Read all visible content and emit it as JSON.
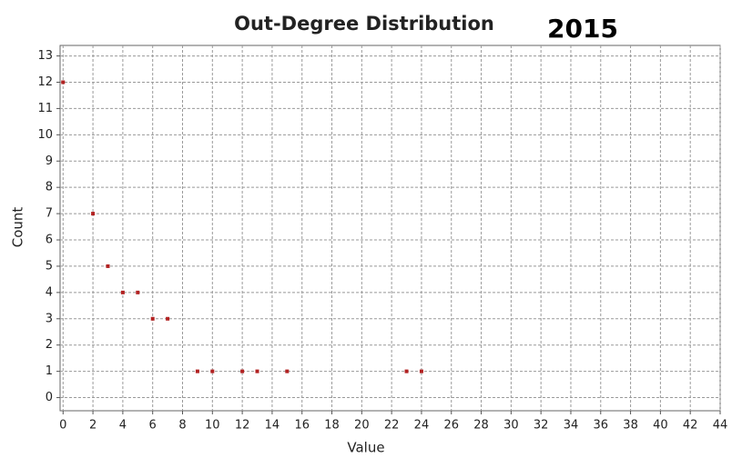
{
  "chart_data": {
    "type": "scatter",
    "title": "Out-Degree Distribution",
    "annotation": "2015",
    "x_label": "Value",
    "y_label": "Count",
    "series": [
      {
        "name": "Count",
        "color": "#b22222",
        "x": [
          0,
          2,
          3,
          4,
          5,
          6,
          7,
          9,
          10,
          12,
          13,
          15,
          23,
          24
        ],
        "values": [
          12,
          7,
          5,
          4,
          4,
          3,
          3,
          1,
          1,
          1,
          1,
          1,
          1,
          1
        ]
      }
    ],
    "xlim": [
      -0.2,
      44
    ],
    "ylim": [
      -0.5,
      13.4
    ],
    "xticks": [
      0,
      2,
      4,
      6,
      8,
      10,
      12,
      14,
      16,
      18,
      20,
      22,
      24,
      26,
      28,
      30,
      32,
      34,
      36,
      38,
      40,
      42,
      44
    ],
    "yticks": [
      0,
      1,
      2,
      3,
      4,
      5,
      6,
      7,
      8,
      9,
      10,
      11,
      12,
      13
    ],
    "grid": true
  }
}
